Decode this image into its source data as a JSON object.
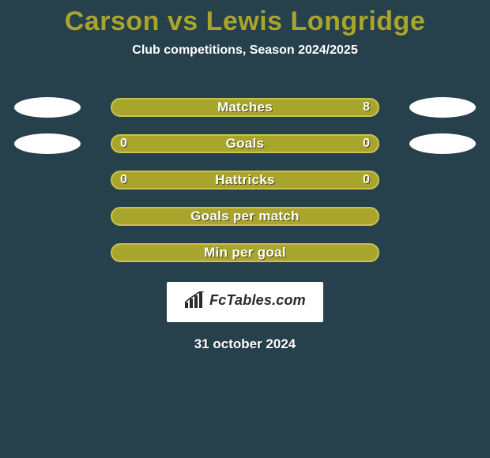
{
  "colors": {
    "background": "#26404c",
    "title": "#a9a52c",
    "subtitle": "#ffffff",
    "bar_fill": "#a9a52c",
    "bar_border": "#c9c24f",
    "bar_text": "#ffffff",
    "ellipse": "#ffffff",
    "brand_bg": "#ffffff",
    "brand_text": "#2a2a2a",
    "date": "#ffffff"
  },
  "typography": {
    "title_fontsize": 34,
    "subtitle_fontsize": 16,
    "bar_label_fontsize": 17,
    "value_fontsize": 16,
    "brand_fontsize": 18,
    "date_fontsize": 17
  },
  "title": "Carson vs Lewis Longridge",
  "subtitle": "Club competitions, Season 2024/2025",
  "rows": [
    {
      "label": "Matches",
      "left": "",
      "right": "8",
      "ellipse_left": true,
      "ellipse_right": true
    },
    {
      "label": "Goals",
      "left": "0",
      "right": "0",
      "ellipse_left": true,
      "ellipse_right": true
    },
    {
      "label": "Hattricks",
      "left": "0",
      "right": "0",
      "ellipse_left": false,
      "ellipse_right": false
    },
    {
      "label": "Goals per match",
      "left": "",
      "right": "",
      "ellipse_left": false,
      "ellipse_right": false
    },
    {
      "label": "Min per goal",
      "left": "",
      "right": "",
      "ellipse_left": false,
      "ellipse_right": false
    }
  ],
  "brand": "FcTables.com",
  "date": "31 october 2024"
}
